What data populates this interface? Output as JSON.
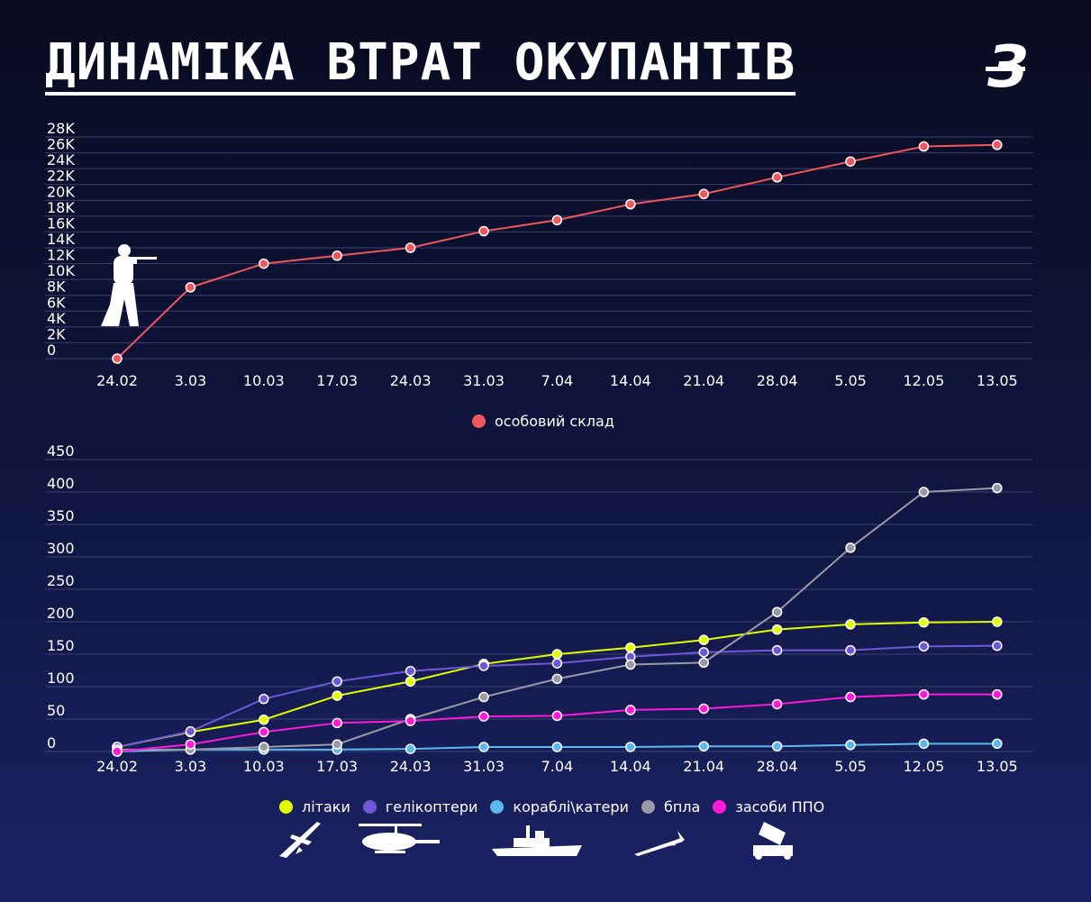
{
  "title": "ДИНАМІКА ВТРАТ ОКУПАНТІВ",
  "logo_text": "З",
  "colors": {
    "personnel": "#f0565a",
    "aircraft": "#e2ff00",
    "helicopters": "#6e58d8",
    "ships": "#5bb8f0",
    "uav": "#9a9aa6",
    "air_defense": "#ff1ad9"
  },
  "icons": [
    "soldier-icon",
    "plane-icon",
    "helicopter-icon",
    "ship-icon",
    "uav-icon",
    "air-defense-icon"
  ],
  "chart_data": [
    {
      "type": "line",
      "categories": [
        "24.02",
        "3.03",
        "10.03",
        "17.03",
        "24.03",
        "31.03",
        "7.04",
        "14.04",
        "21.04",
        "28.04",
        "5.05",
        "12.05",
        "13.05"
      ],
      "y_ticks": [
        "0",
        "2K",
        "4K",
        "6K",
        "8K",
        "10K",
        "12K",
        "14K",
        "16K",
        "18K",
        "20K",
        "22K",
        "24K",
        "26K",
        "28K"
      ],
      "ylim": [
        0,
        28000
      ],
      "grid": true,
      "series": [
        {
          "name": "особовий склад",
          "color": "#f0565a",
          "values": [
            0,
            9000,
            12000,
            13000,
            14000,
            16100,
            17500,
            19500,
            20800,
            22900,
            24900,
            26800,
            27000
          ]
        }
      ]
    },
    {
      "type": "line",
      "categories": [
        "24.02",
        "3.03",
        "10.03",
        "17.03",
        "24.03",
        "31.03",
        "7.04",
        "14.04",
        "21.04",
        "28.04",
        "5.05",
        "12.05",
        "13.05"
      ],
      "y_ticks": [
        "0",
        "50",
        "100",
        "150",
        "200",
        "250",
        "300",
        "350",
        "400",
        "450"
      ],
      "ylim": [
        0,
        450
      ],
      "grid": true,
      "series": [
        {
          "name": "літаки",
          "color": "#e2ff00",
          "values": [
            7,
            30,
            49,
            86,
            108,
            135,
            150,
            160,
            172,
            188,
            196,
            199,
            200
          ]
        },
        {
          "name": "гелікоптери",
          "color": "#6e58d8",
          "values": [
            7,
            31,
            81,
            108,
            124,
            132,
            136,
            146,
            153,
            156,
            156,
            162,
            163
          ]
        },
        {
          "name": "кораблі\\катери",
          "color": "#5bb8f0",
          "values": [
            0,
            3,
            3,
            3,
            4,
            7,
            7,
            7,
            8,
            8,
            10,
            12,
            12
          ]
        },
        {
          "name": "бпла",
          "color": "#9a9aa6",
          "values": [
            3,
            3,
            7,
            11,
            50,
            84,
            112,
            134,
            137,
            215,
            314,
            400,
            406
          ]
        },
        {
          "name": "засоби ППО",
          "color": "#ff1ad9",
          "values": [
            0,
            11,
            30,
            44,
            47,
            54,
            55,
            64,
            66,
            73,
            84,
            88,
            88
          ]
        }
      ]
    }
  ]
}
